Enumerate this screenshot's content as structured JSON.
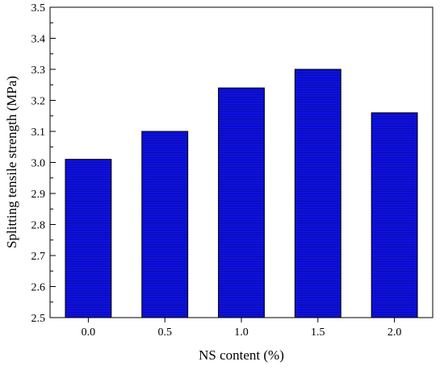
{
  "chart_data": {
    "type": "bar",
    "categories": [
      "0.0",
      "0.5",
      "1.0",
      "1.5",
      "2.0"
    ],
    "values": [
      3.01,
      3.1,
      3.24,
      3.3,
      3.16
    ],
    "title": "",
    "xlabel": "NS content (%)",
    "ylabel": "Splitting tensile strength (MPa)",
    "ylim": [
      2.5,
      3.5
    ],
    "yticks": [
      "2.5",
      "2.6",
      "2.7",
      "2.8",
      "2.9",
      "3.0",
      "3.1",
      "3.2",
      "3.3",
      "3.4",
      "3.5"
    ],
    "grid": false,
    "legend": "none",
    "bar_color": "#1010e0",
    "bar_edge_color": "#000000",
    "bar_line_color": "#000a8c"
  }
}
